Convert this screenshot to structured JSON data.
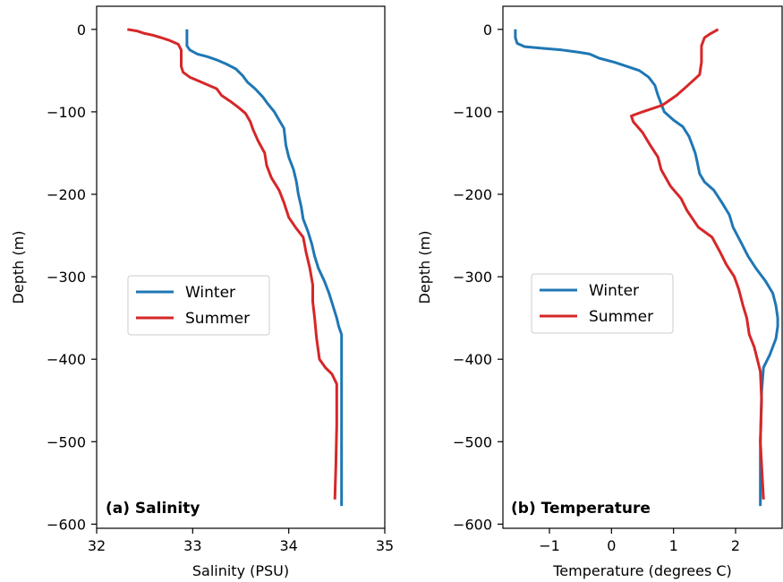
{
  "chart_data": [
    {
      "type": "line",
      "panel_label": "(a) Salinity",
      "xlabel": "Salinity (PSU)",
      "ylabel": "Depth (m)",
      "xlim": [
        32,
        35
      ],
      "ylim": [
        -605,
        28
      ],
      "xticks": [
        32,
        33,
        34,
        35
      ],
      "xtick_labels": [
        "32",
        "33",
        "34",
        "35"
      ],
      "yticks": [
        0,
        -100,
        -200,
        -300,
        -400,
        -500,
        -600
      ],
      "ytick_labels": [
        "0",
        "−100",
        "−200",
        "−300",
        "−400",
        "−500",
        "−600"
      ],
      "legend_placement": "center-left",
      "series": [
        {
          "name": "Winter",
          "color": "#1f77b4",
          "points": [
            [
              32.94,
              0
            ],
            [
              32.94,
              -10
            ],
            [
              32.94,
              -20
            ],
            [
              32.97,
              -25
            ],
            [
              33.05,
              -30
            ],
            [
              33.15,
              -33
            ],
            [
              33.25,
              -37
            ],
            [
              33.35,
              -42
            ],
            [
              33.45,
              -48
            ],
            [
              33.52,
              -56
            ],
            [
              33.57,
              -64
            ],
            [
              33.65,
              -72
            ],
            [
              33.73,
              -82
            ],
            [
              33.78,
              -90
            ],
            [
              33.85,
              -100
            ],
            [
              33.9,
              -110
            ],
            [
              33.95,
              -120
            ],
            [
              33.96,
              -130
            ],
            [
              33.97,
              -140
            ],
            [
              34.0,
              -155
            ],
            [
              34.05,
              -170
            ],
            [
              34.08,
              -185
            ],
            [
              34.1,
              -200
            ],
            [
              34.13,
              -215
            ],
            [
              34.15,
              -230
            ],
            [
              34.2,
              -245
            ],
            [
              34.24,
              -260
            ],
            [
              34.27,
              -275
            ],
            [
              34.31,
              -290
            ],
            [
              34.37,
              -305
            ],
            [
              34.42,
              -320
            ],
            [
              34.46,
              -335
            ],
            [
              34.5,
              -350
            ],
            [
              34.52,
              -360
            ],
            [
              34.55,
              -370
            ],
            [
              34.55,
              -420
            ],
            [
              34.55,
              -480
            ],
            [
              34.55,
              -540
            ],
            [
              34.55,
              -578
            ]
          ]
        },
        {
          "name": "Summer",
          "color": "#d62728",
          "points": [
            [
              32.32,
              0
            ],
            [
              32.42,
              -2
            ],
            [
              32.5,
              -5
            ],
            [
              32.58,
              -7
            ],
            [
              32.67,
              -10
            ],
            [
              32.75,
              -13
            ],
            [
              32.85,
              -18
            ],
            [
              32.88,
              -25
            ],
            [
              32.88,
              -35
            ],
            [
              32.88,
              -45
            ],
            [
              32.9,
              -52
            ],
            [
              32.97,
              -58
            ],
            [
              33.05,
              -62
            ],
            [
              33.15,
              -67
            ],
            [
              33.25,
              -72
            ],
            [
              33.3,
              -80
            ],
            [
              33.4,
              -88
            ],
            [
              33.48,
              -95
            ],
            [
              33.55,
              -102
            ],
            [
              33.6,
              -112
            ],
            [
              33.63,
              -122
            ],
            [
              33.68,
              -135
            ],
            [
              33.75,
              -150
            ],
            [
              33.77,
              -165
            ],
            [
              33.82,
              -180
            ],
            [
              33.9,
              -195
            ],
            [
              33.95,
              -210
            ],
            [
              34.0,
              -228
            ],
            [
              34.07,
              -240
            ],
            [
              34.15,
              -252
            ],
            [
              34.18,
              -270
            ],
            [
              34.22,
              -290
            ],
            [
              34.25,
              -310
            ],
            [
              34.25,
              -330
            ],
            [
              34.27,
              -350
            ],
            [
              34.29,
              -375
            ],
            [
              34.32,
              -400
            ],
            [
              34.38,
              -410
            ],
            [
              34.45,
              -418
            ],
            [
              34.5,
              -430
            ],
            [
              34.5,
              -480
            ],
            [
              34.49,
              -530
            ],
            [
              34.48,
              -570
            ]
          ]
        }
      ]
    },
    {
      "type": "line",
      "panel_label": "(b) Temperature",
      "xlabel": "Temperature (degrees C)",
      "ylabel": "Depth (m)",
      "xlim": [
        -1.75,
        2.75
      ],
      "ylim": [
        -605,
        28
      ],
      "xticks": [
        -1,
        0,
        1,
        2
      ],
      "xtick_labels": [
        "−1",
        "0",
        "1",
        "2"
      ],
      "yticks": [
        0,
        -100,
        -200,
        -300,
        -400,
        -500,
        -600
      ],
      "ytick_labels": [
        "0",
        "−100",
        "−200",
        "−300",
        "−400",
        "−500",
        "−600"
      ],
      "legend_placement": "center-left",
      "series": [
        {
          "name": "Winter",
          "color": "#1f77b4",
          "points": [
            [
              -1.55,
              0
            ],
            [
              -1.55,
              -10
            ],
            [
              -1.52,
              -17
            ],
            [
              -1.4,
              -21
            ],
            [
              -1.1,
              -23
            ],
            [
              -0.8,
              -25
            ],
            [
              -0.5,
              -28
            ],
            [
              -0.35,
              -30
            ],
            [
              -0.2,
              -35
            ],
            [
              0.05,
              -40
            ],
            [
              0.25,
              -45
            ],
            [
              0.45,
              -50
            ],
            [
              0.6,
              -58
            ],
            [
              0.7,
              -68
            ],
            [
              0.75,
              -80
            ],
            [
              0.8,
              -90
            ],
            [
              0.85,
              -100
            ],
            [
              1.0,
              -110
            ],
            [
              1.15,
              -118
            ],
            [
              1.25,
              -130
            ],
            [
              1.3,
              -140
            ],
            [
              1.35,
              -150
            ],
            [
              1.38,
              -160
            ],
            [
              1.42,
              -175
            ],
            [
              1.5,
              -185
            ],
            [
              1.65,
              -195
            ],
            [
              1.78,
              -210
            ],
            [
              1.9,
              -225
            ],
            [
              1.96,
              -240
            ],
            [
              2.1,
              -260
            ],
            [
              2.2,
              -275
            ],
            [
              2.33,
              -290
            ],
            [
              2.48,
              -305
            ],
            [
              2.6,
              -320
            ],
            [
              2.65,
              -335
            ],
            [
              2.68,
              -350
            ],
            [
              2.68,
              -360
            ],
            [
              2.65,
              -375
            ],
            [
              2.6,
              -385
            ],
            [
              2.55,
              -395
            ],
            [
              2.45,
              -410
            ],
            [
              2.42,
              -440
            ],
            [
              2.4,
              -500
            ],
            [
              2.4,
              -578
            ]
          ]
        },
        {
          "name": "Summer",
          "color": "#d62728",
          "points": [
            [
              1.72,
              0
            ],
            [
              1.6,
              -5
            ],
            [
              1.5,
              -10
            ],
            [
              1.45,
              -20
            ],
            [
              1.45,
              -40
            ],
            [
              1.42,
              -55
            ],
            [
              1.2,
              -70
            ],
            [
              1.05,
              -80
            ],
            [
              0.82,
              -92
            ],
            [
              0.5,
              -100
            ],
            [
              0.32,
              -105
            ],
            [
              0.35,
              -112
            ],
            [
              0.5,
              -125
            ],
            [
              0.62,
              -140
            ],
            [
              0.75,
              -155
            ],
            [
              0.8,
              -170
            ],
            [
              0.95,
              -190
            ],
            [
              1.12,
              -205
            ],
            [
              1.22,
              -220
            ],
            [
              1.4,
              -240
            ],
            [
              1.62,
              -252
            ],
            [
              1.75,
              -270
            ],
            [
              1.85,
              -285
            ],
            [
              1.98,
              -300
            ],
            [
              2.05,
              -315
            ],
            [
              2.12,
              -335
            ],
            [
              2.18,
              -350
            ],
            [
              2.22,
              -370
            ],
            [
              2.3,
              -385
            ],
            [
              2.35,
              -400
            ],
            [
              2.4,
              -415
            ],
            [
              2.42,
              -450
            ],
            [
              2.4,
              -500
            ],
            [
              2.45,
              -570
            ]
          ]
        }
      ]
    }
  ]
}
